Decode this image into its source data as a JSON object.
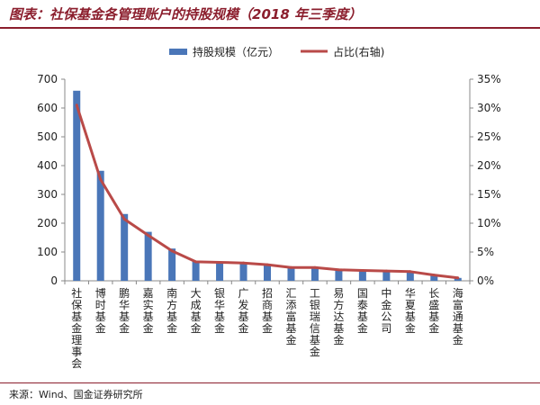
{
  "title": "图表：社保基金各管理账户的持股规模（2018 年三季度）",
  "source": "来源：Wind、国金证券研究所",
  "colors": {
    "bar": "#4a76b8",
    "line": "#b94a48",
    "accent": "#8b1e2d"
  },
  "chart_data": {
    "type": "bar",
    "categories": [
      "社保基金理事会",
      "博时基金",
      "鹏华基金",
      "嘉实基金",
      "南方基金",
      "大成基金",
      "银华基金",
      "广发基金",
      "招商基金",
      "汇添富基金",
      "工银瑞信基金",
      "易方达基金",
      "国泰基金",
      "中金公司",
      "华夏基金",
      "长盛基金",
      "海富通基金"
    ],
    "series": [
      {
        "name": "持股规模（亿元）",
        "type": "bar",
        "axis": "left",
        "values": [
          660,
          382,
          232,
          170,
          112,
          68,
          65,
          62,
          57,
          47,
          47,
          38,
          36,
          33,
          33,
          20,
          10
        ]
      },
      {
        "name": "占比(右轴)",
        "type": "line",
        "axis": "right",
        "unit": "%",
        "values": [
          30.5,
          17.6,
          10.7,
          7.9,
          5.2,
          3.3,
          3.2,
          3.1,
          2.8,
          2.3,
          2.3,
          1.9,
          1.8,
          1.7,
          1.6,
          1.0,
          0.5
        ]
      }
    ],
    "ylim": [
      0,
      700
    ],
    "yticks": [
      0,
      100,
      200,
      300,
      400,
      500,
      600,
      700
    ],
    "y2lim": [
      0,
      35
    ],
    "y2ticks": [
      "0%",
      "5%",
      "10%",
      "15%",
      "20%",
      "25%",
      "30%",
      "35%"
    ],
    "legend": "top-center",
    "grid": false
  }
}
